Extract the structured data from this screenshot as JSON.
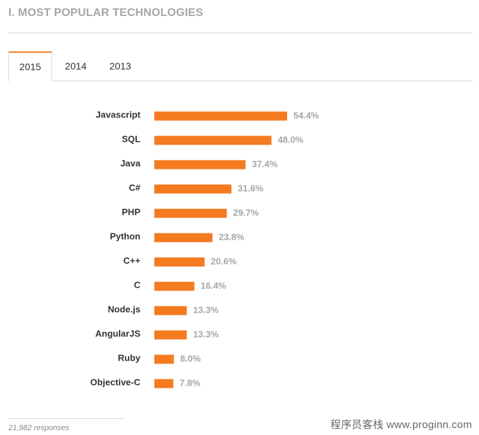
{
  "section": {
    "title": "I. MOST POPULAR TECHNOLOGIES"
  },
  "tabs": [
    {
      "label": "2015",
      "active": true
    },
    {
      "label": "2014",
      "active": false
    },
    {
      "label": "2013",
      "active": false
    }
  ],
  "chart_data": {
    "type": "bar",
    "orientation": "horizontal",
    "categories": [
      "Javascript",
      "SQL",
      "Java",
      "C#",
      "PHP",
      "Python",
      "C++",
      "C",
      "Node.js",
      "AngularJS",
      "Ruby",
      "Objective-C"
    ],
    "values": [
      54.4,
      48.0,
      37.4,
      31.6,
      29.7,
      23.8,
      20.6,
      16.4,
      13.3,
      13.3,
      8.0,
      7.8
    ],
    "value_labels": [
      "54.4%",
      "48.0%",
      "37.4%",
      "31.6%",
      "29.7%",
      "23.8%",
      "20.6%",
      "16.4%",
      "13.3%",
      "13.3%",
      "8.0%",
      "7.8%"
    ],
    "bar_color": "#f47b20",
    "grid": false,
    "title": "",
    "xlabel": "",
    "ylabel": ""
  },
  "footer": {
    "responses": "21,982 responses"
  },
  "watermark": {
    "text": "程序员客栈 www.proginn.com"
  }
}
